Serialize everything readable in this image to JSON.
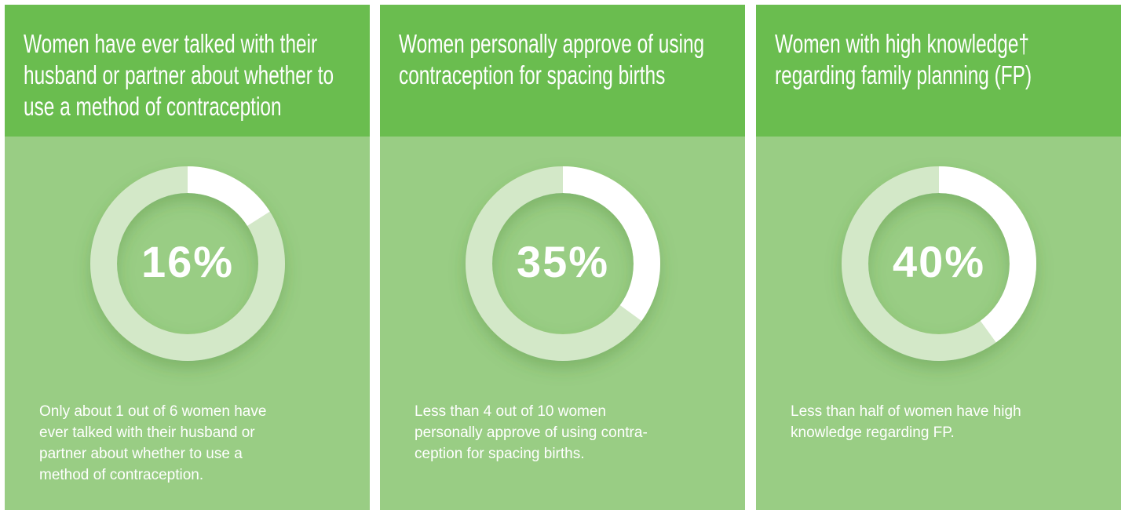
{
  "chart_data": [
    {
      "type": "donut",
      "title_lines": [
        "Women have ever talked with their",
        "husband or partner about whether to",
        "use a method of contraception"
      ],
      "values": [
        16
      ],
      "value_labels": [
        "16%"
      ],
      "color": "#ffffff",
      "track_color": "#d3e8c8",
      "description_lines": [
        "Only about 1 out of 6 women have",
        "ever talked with their husband or",
        "partner about whether to use a",
        "method of contraception."
      ]
    },
    {
      "type": "donut",
      "title_lines": [
        "Women personally approve of using",
        "contraception for spacing births"
      ],
      "values": [
        35
      ],
      "value_labels": [
        "35%"
      ],
      "color": "#ffffff",
      "track_color": "#d3e8c8",
      "description_lines": [
        "Less than 4 out of 10 women",
        "personally approve of using contra-",
        "ception for spacing births."
      ]
    },
    {
      "type": "donut",
      "title_lines": [
        "Women with high knowledge†",
        "regarding family planning (FP)"
      ],
      "values": [
        40
      ],
      "value_labels": [
        "40%"
      ],
      "color": "#ffffff",
      "track_color": "#d3e8c8",
      "description_lines": [
        "Less than half of women have high",
        "knowledge regarding FP."
      ]
    }
  ]
}
